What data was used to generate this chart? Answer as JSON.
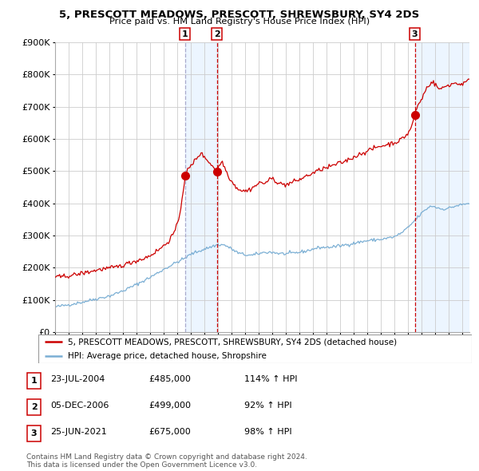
{
  "title": "5, PRESCOTT MEADOWS, PRESCOTT, SHREWSBURY, SY4 2DS",
  "subtitle": "Price paid vs. HM Land Registry's House Price Index (HPI)",
  "ylim": [
    0,
    900000
  ],
  "yticks": [
    0,
    100000,
    200000,
    300000,
    400000,
    500000,
    600000,
    700000,
    800000,
    900000
  ],
  "ytick_labels": [
    "£0",
    "£100K",
    "£200K",
    "£300K",
    "£400K",
    "£500K",
    "£600K",
    "£700K",
    "£800K",
    "£900K"
  ],
  "xlim_start": 1995.0,
  "xlim_end": 2025.5,
  "house_color": "#cc0000",
  "hpi_color": "#7bafd4",
  "grid_color": "#cccccc",
  "span1_start": 2004.55,
  "span1_end": 2006.92,
  "span2_start": 2021.48,
  "span2_end": 2025.5,
  "span_color": "#ddeeff",
  "span_alpha": 0.55,
  "sale_points": [
    {
      "year": 2004.55,
      "price": 485000,
      "label": "1"
    },
    {
      "year": 2006.92,
      "price": 499000,
      "label": "2"
    },
    {
      "year": 2021.48,
      "price": 675000,
      "label": "3"
    }
  ],
  "vline1_color": "#aaaacc",
  "vline1_ls": "--",
  "vline23_color": "#cc0000",
  "vline23_ls": "--",
  "legend_house_label": "5, PRESCOTT MEADOWS, PRESCOTT, SHREWSBURY, SY4 2DS (detached house)",
  "legend_hpi_label": "HPI: Average price, detached house, Shropshire",
  "table_rows": [
    {
      "num": "1",
      "date": "23-JUL-2004",
      "price": "£485,000",
      "hpi": "114% ↑ HPI"
    },
    {
      "num": "2",
      "date": "05-DEC-2006",
      "price": "£499,000",
      "hpi": "92% ↑ HPI"
    },
    {
      "num": "3",
      "date": "25-JUN-2021",
      "price": "£675,000",
      "hpi": "98% ↑ HPI"
    }
  ],
  "footer": "Contains HM Land Registry data © Crown copyright and database right 2024.\nThis data is licensed under the Open Government Licence v3.0."
}
